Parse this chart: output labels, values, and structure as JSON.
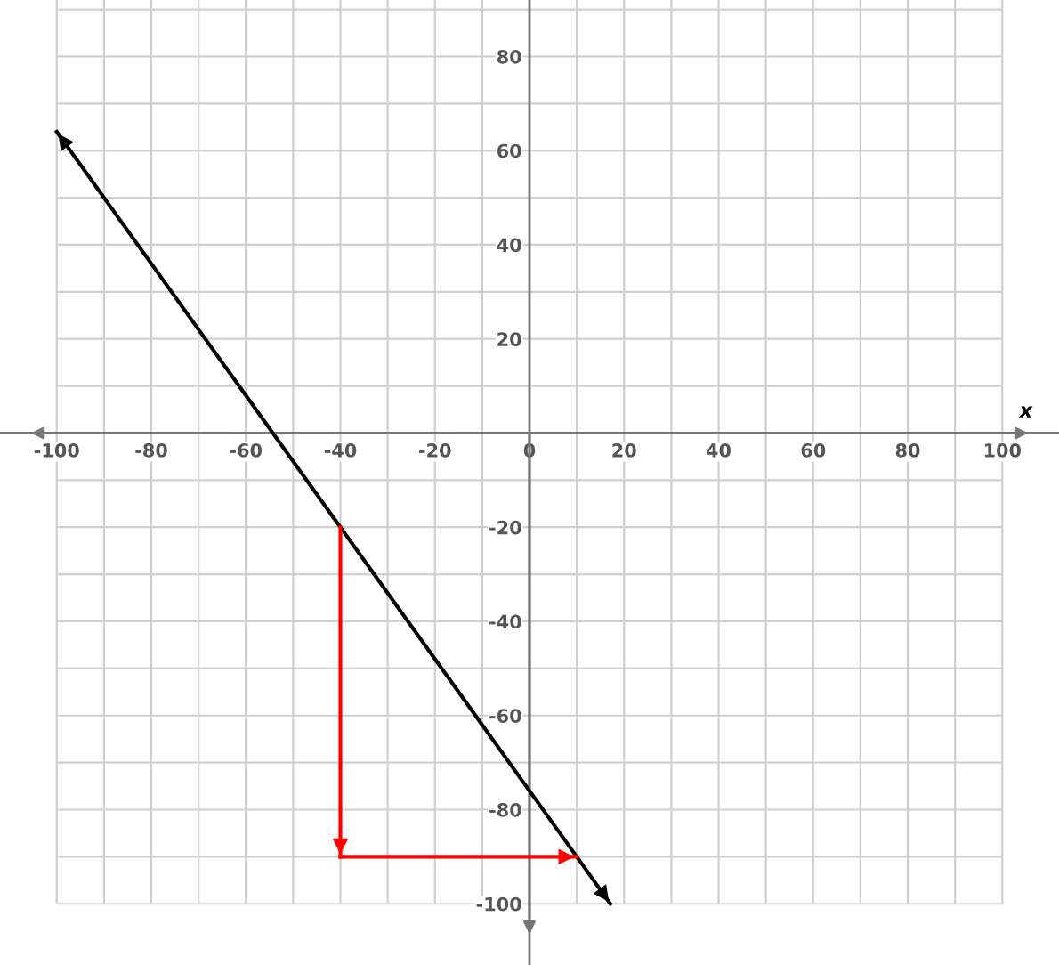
{
  "chart_data": {
    "type": "line",
    "xlabel": "x",
    "xlim": [
      -112,
      112
    ],
    "ylim": [
      -113,
      92
    ],
    "xticks": [
      -100,
      {
        "value": -90,
        "label": null
      },
      -80,
      {
        "value": -70,
        "label": null
      },
      -60,
      {
        "value": -50,
        "label": null
      },
      -40,
      {
        "value": -30,
        "label": null
      },
      -20,
      {
        "value": -10,
        "label": null
      },
      0,
      {
        "value": 10,
        "label": null
      },
      20,
      {
        "value": 30,
        "label": null
      },
      40,
      {
        "value": 50,
        "label": null
      },
      60,
      {
        "value": 70,
        "label": null
      },
      80,
      {
        "value": 90,
        "label": null
      },
      100
    ],
    "yticks": [
      -100,
      {
        "value": -90,
        "label": null
      },
      -80,
      {
        "value": -70,
        "label": null
      },
      -60,
      {
        "value": -50,
        "label": null
      },
      -40,
      {
        "value": -30,
        "label": null
      },
      -20,
      {
        "value": -10,
        "label": null
      },
      {
        "value": 0,
        "label": null
      },
      {
        "value": 10,
        "label": null
      },
      20,
      {
        "value": 30,
        "label": null
      },
      40,
      {
        "value": 50,
        "label": null
      },
      60,
      {
        "value": 70,
        "label": null
      },
      80,
      {
        "value": 90,
        "label": null
      }
    ],
    "grid": true,
    "marker": "none",
    "line_style": "solid",
    "series": [
      {
        "color": "#000000",
        "x": [
          -100,
          -40,
          10,
          17.1
        ],
        "values": [
          64,
          -20,
          -90,
          -100
        ]
      },
      {
        "color": "#ff0000",
        "x": [
          -40,
          -40
        ],
        "values": [
          -20,
          -90
        ]
      },
      {
        "color": "#ff0000",
        "x": [
          -40,
          10
        ],
        "values": [
          -90,
          -90
        ]
      }
    ]
  }
}
